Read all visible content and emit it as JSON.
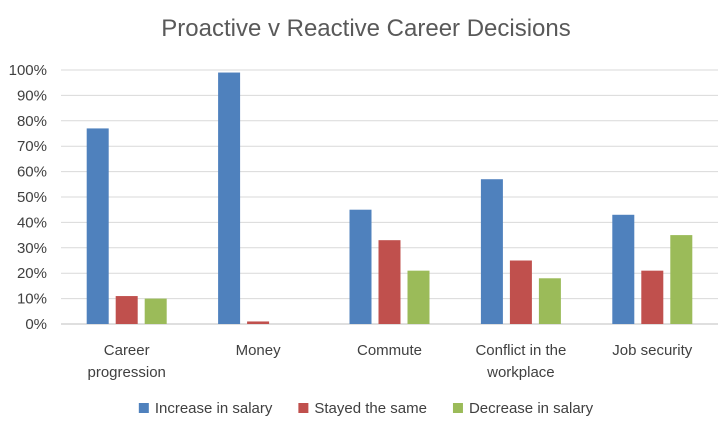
{
  "chart_data": {
    "type": "bar",
    "title": "Proactive v Reactive Career Decisions",
    "categories": [
      [
        "Career",
        "progression"
      ],
      [
        "Money"
      ],
      [
        "Commute"
      ],
      [
        "Conflict in the",
        "workplace"
      ],
      [
        "Job security"
      ]
    ],
    "series": [
      {
        "name": "Increase in salary",
        "color": "#4f81bd",
        "values": [
          77,
          99,
          45,
          57,
          43
        ]
      },
      {
        "name": "Stayed the same",
        "color": "#c0504d",
        "values": [
          11,
          1,
          33,
          25,
          21
        ]
      },
      {
        "name": "Decrease in salary",
        "color": "#9bbb59",
        "values": [
          10,
          0,
          21,
          18,
          35
        ]
      }
    ],
    "ylim": [
      0,
      100
    ],
    "yticks": [
      "0%",
      "10%",
      "20%",
      "30%",
      "40%",
      "50%",
      "60%",
      "70%",
      "80%",
      "90%",
      "100%"
    ],
    "grid": true,
    "legend_position": "bottom"
  }
}
